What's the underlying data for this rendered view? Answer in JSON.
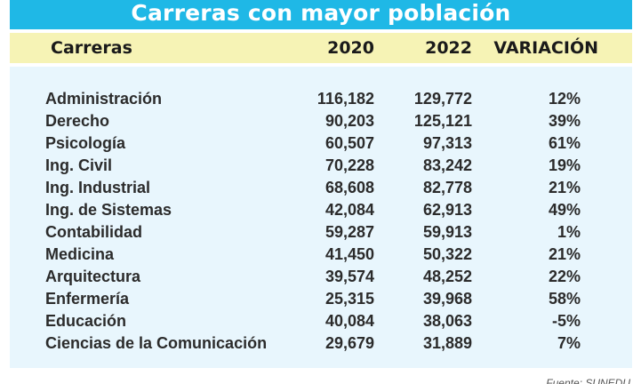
{
  "title": "Carreras con mayor población",
  "chart_data": {
    "type": "table",
    "columns": [
      "Carreras",
      "2020",
      "2022",
      "VARIACIÓN"
    ],
    "rows": [
      [
        "Administración",
        "116,182",
        "129,772",
        "12%"
      ],
      [
        "Derecho",
        "90,203",
        "125,121",
        "39%"
      ],
      [
        "Psicología",
        "60,507",
        "97,313",
        "61%"
      ],
      [
        "Ing. Civil",
        "70,228",
        "83,242",
        "19%"
      ],
      [
        "Ing. Industrial",
        "68,608",
        "82,778",
        "21%"
      ],
      [
        "Ing. de Sistemas",
        "42,084",
        "62,913",
        "49%"
      ],
      [
        "Contabilidad",
        "59,287",
        "59,913",
        "1%"
      ],
      [
        "Medicina",
        "41,450",
        "50,322",
        "21%"
      ],
      [
        "Arquitectura",
        "39,574",
        "48,252",
        "22%"
      ],
      [
        "Enfermería",
        "25,315",
        "39,968",
        "58%"
      ],
      [
        "Educación",
        "40,084",
        "38,063",
        "-5%"
      ],
      [
        "Ciencias de la Comunicación",
        "29,679",
        "31,889",
        "7%"
      ]
    ]
  },
  "source": "Fuente: SUNEDU",
  "colors": {
    "title_bg": "#1fb8e6",
    "header_bg": "#f6f3b5",
    "body_bg": "#e8f6fd"
  }
}
